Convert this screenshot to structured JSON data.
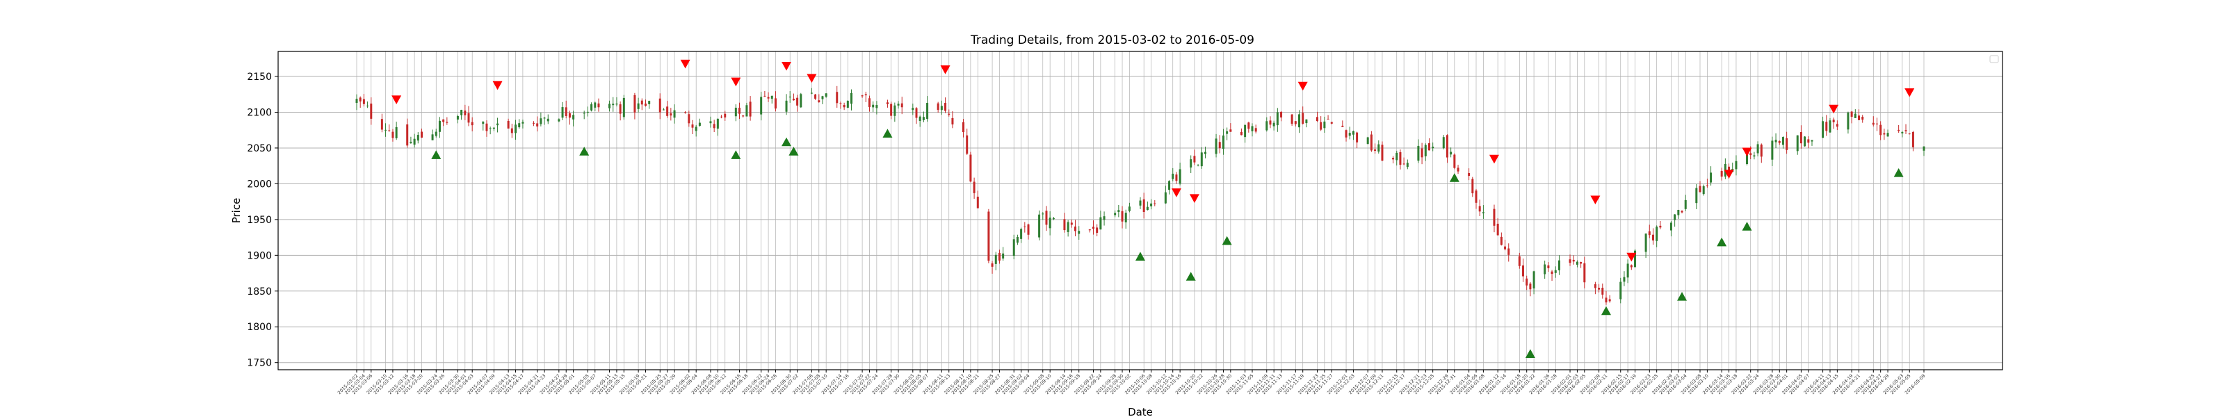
{
  "chart_data": {
    "type": "candlestick",
    "title": "Trading Details, from 2015-03-02 to 2016-05-09",
    "xlabel": "Date",
    "ylabel": "Price",
    "ylim": [
      1740,
      2185
    ],
    "yticks": [
      1750,
      1800,
      1850,
      1900,
      1950,
      2000,
      2050,
      2100,
      2150
    ],
    "grid": true,
    "legend": {
      "placement": "top-right",
      "entries": []
    },
    "x_start": "2015-03-02",
    "x_end": "2016-05-09",
    "colors": {
      "up": "#2e7d32",
      "down": "#c62828",
      "buy_marker": "#1b7a1b",
      "sell_marker": "#ff0000",
      "grid": "#b0b0b0"
    },
    "close_series": [
      [
        "2015-03-02",
        2115
      ],
      [
        "2015-03-16",
        2055
      ],
      [
        "2015-03-30",
        2095
      ],
      [
        "2015-04-13",
        2075
      ],
      [
        "2015-04-27",
        2100
      ],
      [
        "2015-05-11",
        2110
      ],
      [
        "2015-05-25",
        2105
      ],
      [
        "2015-06-08",
        2080
      ],
      [
        "2015-06-22",
        2110
      ],
      [
        "2015-07-06",
        2125
      ],
      [
        "2015-07-20",
        2115
      ],
      [
        "2015-08-03",
        2095
      ],
      [
        "2015-08-10",
        2110
      ],
      [
        "2015-08-17",
        2065
      ],
      [
        "2015-08-24",
        1890
      ],
      [
        "2015-09-07",
        1950
      ],
      [
        "2015-09-21",
        1935
      ],
      [
        "2015-10-05",
        1965
      ],
      [
        "2015-10-19",
        2025
      ],
      [
        "2015-11-02",
        2080
      ],
      [
        "2015-11-16",
        2095
      ],
      [
        "2015-11-30",
        2080
      ],
      [
        "2015-12-14",
        2030
      ],
      [
        "2015-12-28",
        2055
      ],
      [
        "2016-01-04",
        2005
      ],
      [
        "2016-01-11",
        1930
      ],
      [
        "2016-01-20",
        1860
      ],
      [
        "2016-02-01",
        1900
      ],
      [
        "2016-02-11",
        1835
      ],
      [
        "2016-02-22",
        1920
      ],
      [
        "2016-03-07",
        1990
      ],
      [
        "2016-03-21",
        2040
      ],
      [
        "2016-04-04",
        2060
      ],
      [
        "2016-04-18",
        2095
      ],
      [
        "2016-05-02",
        2065
      ],
      [
        "2016-05-09",
        2060
      ]
    ],
    "buy_signals": [
      [
        "2015-03-24",
        2040
      ],
      [
        "2015-05-04",
        2045
      ],
      [
        "2015-06-15",
        2040
      ],
      [
        "2015-06-29",
        2058
      ],
      [
        "2015-07-01",
        2045
      ],
      [
        "2015-07-27",
        2070
      ],
      [
        "2015-10-05",
        1898
      ],
      [
        "2015-10-19",
        1870
      ],
      [
        "2015-10-29",
        1920
      ],
      [
        "2015-12-31",
        2008
      ],
      [
        "2016-01-21",
        1762
      ],
      [
        "2016-02-11",
        1822
      ],
      [
        "2016-03-03",
        1842
      ],
      [
        "2016-03-14",
        1918
      ],
      [
        "2016-03-21",
        1940
      ],
      [
        "2016-05-02",
        2015
      ]
    ],
    "sell_signals": [
      [
        "2015-03-13",
        2118
      ],
      [
        "2015-04-10",
        2138
      ],
      [
        "2015-06-01",
        2168
      ],
      [
        "2015-06-15",
        2143
      ],
      [
        "2015-06-29",
        2165
      ],
      [
        "2015-07-06",
        2148
      ],
      [
        "2015-08-12",
        2160
      ],
      [
        "2015-10-15",
        1988
      ],
      [
        "2015-10-20",
        1980
      ],
      [
        "2015-11-19",
        2137
      ],
      [
        "2016-01-11",
        2035
      ],
      [
        "2016-02-08",
        1978
      ],
      [
        "2016-02-18",
        1898
      ],
      [
        "2016-03-16",
        2014
      ],
      [
        "2016-03-21",
        2045
      ],
      [
        "2016-04-14",
        2105
      ],
      [
        "2016-05-05",
        2128
      ]
    ]
  }
}
